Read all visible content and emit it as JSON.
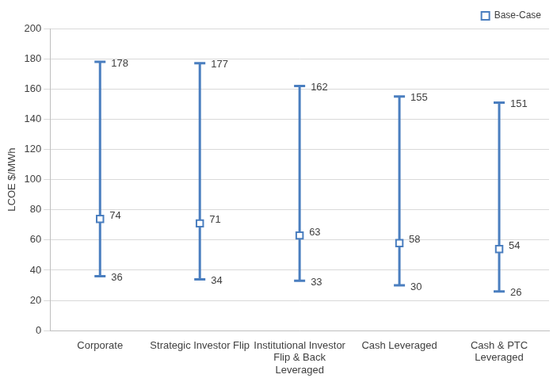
{
  "chart_data": {
    "type": "errorbar",
    "y_label": "LCOE $/MWh",
    "categories": [
      "Corporate",
      "Strategic Investor Flip",
      "Institutional Investor Flip & Back Leveraged",
      "Cash Leveraged",
      "Cash & PTC Leveraged"
    ],
    "series": [
      {
        "name": "Base-Case",
        "color": "#4a7ebf",
        "marker": "square",
        "values": [
          74,
          71,
          63,
          58,
          54
        ],
        "low": [
          36,
          34,
          33,
          30,
          26
        ],
        "high": [
          178,
          177,
          162,
          155,
          151
        ]
      }
    ],
    "ylim": [
      0,
      200
    ],
    "yticks": [
      0,
      20,
      40,
      60,
      80,
      100,
      120,
      140,
      160,
      180,
      200
    ],
    "grid": true,
    "legend": "top-right",
    "data_labels": true
  }
}
